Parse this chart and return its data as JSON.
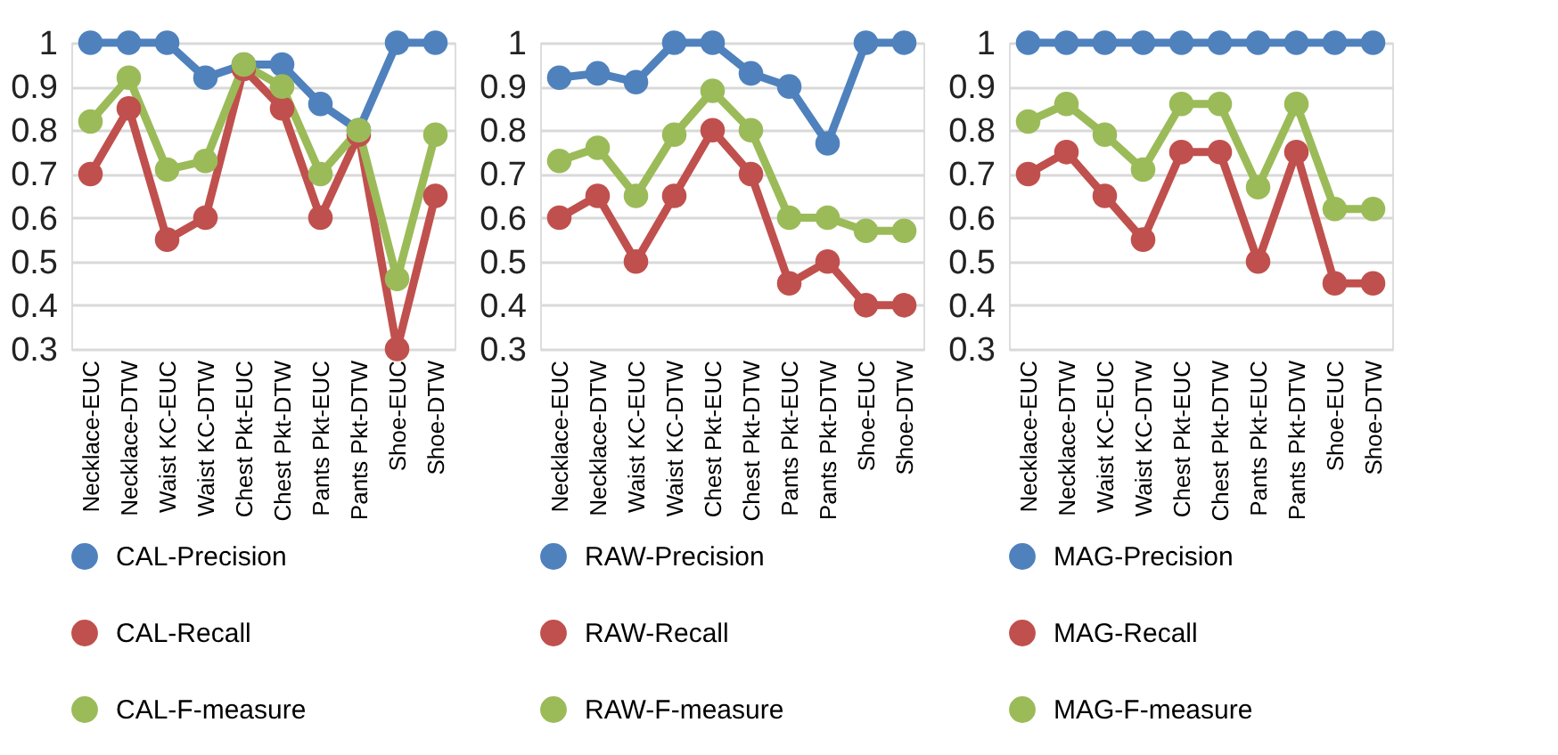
{
  "chart_data": [
    {
      "type": "line",
      "categories": [
        "Necklace-EUC",
        "Necklace-DTW",
        "Waist KC-EUC",
        "Waist KC-DTW",
        "Chest Pkt-EUC",
        "Chest Pkt-DTW",
        "Pants Pkt-EUC",
        "Pants Pkt-DTW",
        "Shoe-EUC",
        "Shoe-DTW"
      ],
      "ylim": [
        0.3,
        1
      ],
      "yticks": [
        0.3,
        0.4,
        0.5,
        0.6,
        0.7,
        0.8,
        0.9,
        1
      ],
      "grid": "y",
      "legend": "bottom",
      "marker": "circle",
      "series": [
        {
          "name": "CAL-Precision",
          "color": "#4f81bd",
          "values": [
            1,
            1,
            1,
            0.92,
            0.95,
            0.95,
            0.86,
            0.8,
            1,
            1
          ]
        },
        {
          "name": "CAL-Recall",
          "color": "#c0504d",
          "values": [
            0.7,
            0.85,
            0.55,
            0.6,
            0.94,
            0.85,
            0.6,
            0.79,
            0.3,
            0.65
          ]
        },
        {
          "name": "CAL-F-measure",
          "color": "#9bbb59",
          "values": [
            0.82,
            0.92,
            0.71,
            0.73,
            0.95,
            0.9,
            0.7,
            0.8,
            0.46,
            0.79
          ]
        }
      ]
    },
    {
      "type": "line",
      "categories": [
        "Necklace-EUC",
        "Necklace-DTW",
        "Waist KC-EUC",
        "Waist KC-DTW",
        "Chest Pkt-EUC",
        "Chest Pkt-DTW",
        "Pants Pkt-EUC",
        "Pants Pkt-DTW",
        "Shoe-EUC",
        "Shoe-DTW"
      ],
      "ylim": [
        0.3,
        1
      ],
      "yticks": [
        0.3,
        0.4,
        0.5,
        0.6,
        0.7,
        0.8,
        0.9,
        1
      ],
      "grid": "y",
      "legend": "bottom",
      "marker": "circle",
      "series": [
        {
          "name": "RAW-Precision",
          "color": "#4f81bd",
          "values": [
            0.92,
            0.93,
            0.91,
            1,
            1,
            0.93,
            0.9,
            0.77,
            1,
            1
          ]
        },
        {
          "name": "RAW-Recall",
          "color": "#c0504d",
          "values": [
            0.6,
            0.65,
            0.5,
            0.65,
            0.8,
            0.7,
            0.45,
            0.5,
            0.4,
            0.4
          ]
        },
        {
          "name": "RAW-F-measure",
          "color": "#9bbb59",
          "values": [
            0.73,
            0.76,
            0.65,
            0.79,
            0.89,
            0.8,
            0.6,
            0.6,
            0.57,
            0.57
          ]
        }
      ]
    },
    {
      "type": "line",
      "categories": [
        "Necklace-EUC",
        "Necklace-DTW",
        "Waist KC-EUC",
        "Waist KC-DTW",
        "Chest Pkt-EUC",
        "Chest Pkt-DTW",
        "Pants Pkt-EUC",
        "Pants Pkt-DTW",
        "Shoe-EUC",
        "Shoe-DTW"
      ],
      "ylim": [
        0.3,
        1
      ],
      "yticks": [
        0.3,
        0.4,
        0.5,
        0.6,
        0.7,
        0.8,
        0.9,
        1
      ],
      "grid": "y",
      "legend": "bottom",
      "marker": "circle",
      "series": [
        {
          "name": "MAG-Precision",
          "color": "#4f81bd",
          "values": [
            1,
            1,
            1,
            1,
            1,
            1,
            1,
            1,
            1,
            1
          ]
        },
        {
          "name": "MAG-Recall",
          "color": "#c0504d",
          "values": [
            0.7,
            0.75,
            0.65,
            0.55,
            0.75,
            0.75,
            0.5,
            0.75,
            0.45,
            0.45
          ]
        },
        {
          "name": "MAG-F-measure",
          "color": "#9bbb59",
          "values": [
            0.82,
            0.86,
            0.79,
            0.71,
            0.86,
            0.86,
            0.67,
            0.86,
            0.62,
            0.62
          ]
        }
      ]
    }
  ]
}
